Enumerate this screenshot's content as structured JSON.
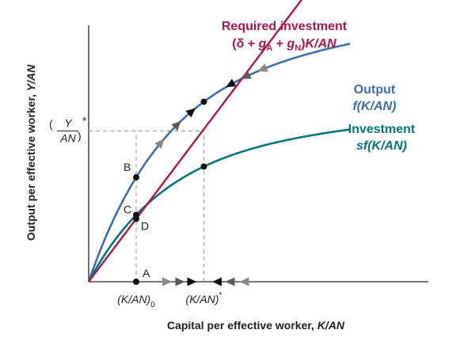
{
  "chart_data": {
    "type": "line",
    "title": "",
    "xlabel": "Capital per effective worker, K/AN",
    "xlabel_plain": "Capital per effective worker, ",
    "xlabel_italic": "K/AN",
    "ylabel": "Output per effective worker, Y/AN",
    "ylabel_plain": "Output per effective worker, ",
    "ylabel_italic": "Y/AN",
    "xlim": [
      0,
      10
    ],
    "ylim": [
      0,
      10
    ],
    "x_ticks": [
      {
        "id": "k0",
        "x": 2.0,
        "label": "(K/AN)",
        "sub": "0"
      },
      {
        "id": "kstar",
        "x": 4.85,
        "label": "(K/AN)",
        "sup": "*"
      }
    ],
    "y_ticks": [
      {
        "id": "ystar",
        "y": 6.35,
        "num": "Y",
        "den": "AN",
        "sup": "*"
      }
    ],
    "series": [
      {
        "id": "output",
        "name_line1": "Output",
        "name_line2": "f(K/AN)",
        "color": "#3b6fad",
        "kind": "output"
      },
      {
        "id": "investment",
        "name_line1": "Investment",
        "name_line2": "sf(K/AN)",
        "color": "#00787f",
        "kind": "investment"
      },
      {
        "id": "required",
        "name_line1": "Required investment",
        "name_line2": "(δ + gA + gN)K/AN",
        "color": "#b5164a",
        "kind": "linear",
        "slope": 1.325
      }
    ],
    "required_label": {
      "line1": "Required investment",
      "open": "(δ + ",
      "g": "g",
      "subA": "A",
      "plus": " + ",
      "subN": "N",
      "close": ")",
      "tail": "K/AN"
    },
    "points": [
      {
        "label": "A",
        "x": 2.0,
        "y": 0
      },
      {
        "label": "B",
        "x": 2.0,
        "y": 3.3
      },
      {
        "label": "C",
        "x": 2.0,
        "y": 2.2
      },
      {
        "label": "D",
        "x": 2.0,
        "y": 1.55
      }
    ],
    "steady_state": {
      "x": 4.85,
      "y_output": 6.35,
      "y_investment": 4.1
    },
    "colors": {
      "axis": "#222222",
      "dashes": "#9a9a9a",
      "arrow_light": "#888888",
      "arrow_dark": "#111111"
    }
  }
}
